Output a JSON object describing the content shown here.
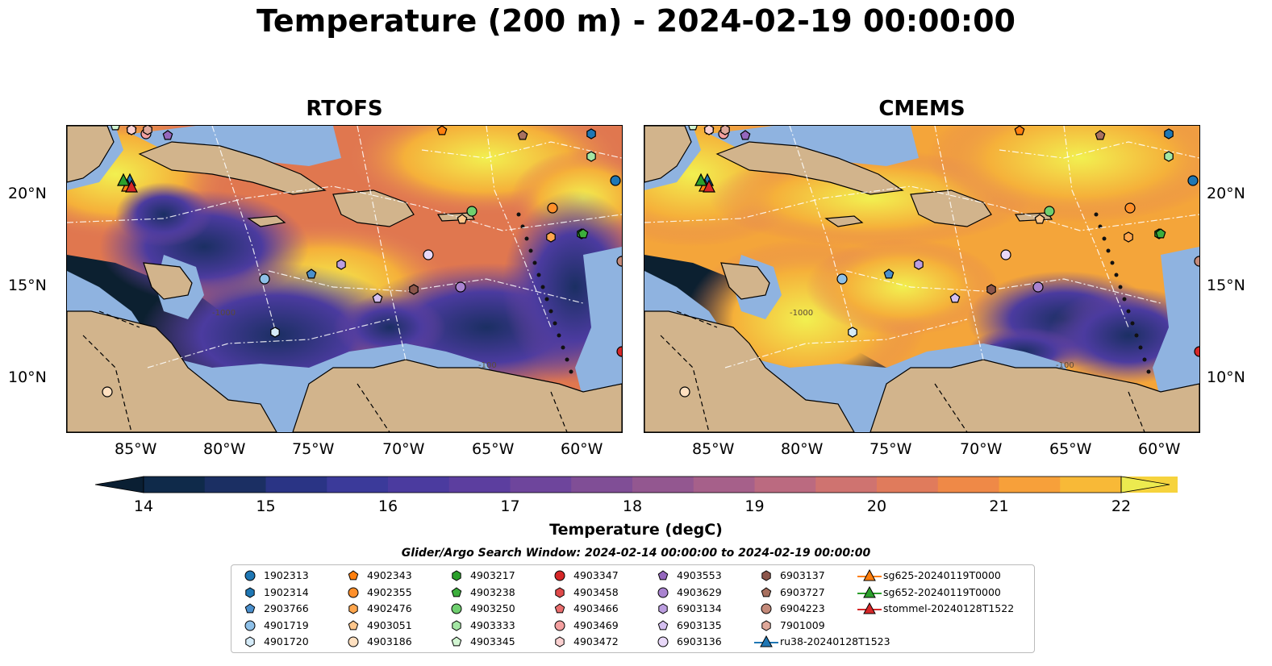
{
  "title": "Temperature (200 m) - 2024-02-19 00:00:00",
  "panels": [
    {
      "id": "left",
      "title": "RTOFS"
    },
    {
      "id": "right",
      "title": "CMEMS"
    }
  ],
  "lat_labels": [
    "20°N",
    "15°N",
    "10°N"
  ],
  "lon_labels": [
    "85°W",
    "80°W",
    "75°W",
    "70°W",
    "65°W",
    "60°W"
  ],
  "colorbar": {
    "label": "Temperature (degC)",
    "ticks": [
      "14",
      "15",
      "16",
      "17",
      "18",
      "19",
      "20",
      "21",
      "22"
    ],
    "min": 14,
    "max": 22,
    "colors": [
      "#0a1f33",
      "#0f2a4a",
      "#1b2f63",
      "#2a3485",
      "#3b3a9a",
      "#4b3b9f",
      "#5c3e9f",
      "#6e459c",
      "#804e96",
      "#935790",
      "#a6608a",
      "#bb6a80",
      "#cf7370",
      "#e07b5c",
      "#ef8947",
      "#f7a03a",
      "#f8b937",
      "#f6d33d",
      "#ecea4f"
    ]
  },
  "search_window": "Glider/Argo Search Window: 2024-02-14 00:00:00 to 2024-02-19 00:00:00",
  "legend": [
    {
      "label": "1902313",
      "shape": "circle",
      "color": "#1f77b4"
    },
    {
      "label": "1902314",
      "shape": "hexagon",
      "color": "#1f77b4"
    },
    {
      "label": "2903766",
      "shape": "pentagon",
      "color": "#4a8fcc"
    },
    {
      "label": "4901719",
      "shape": "circle",
      "color": "#8ec0e8"
    },
    {
      "label": "4901720",
      "shape": "hexagon",
      "color": "#d5ebf8"
    },
    {
      "label": "4902343",
      "shape": "pentagon",
      "color": "#ff7f0e"
    },
    {
      "label": "4902355",
      "shape": "circle",
      "color": "#ff8f2a"
    },
    {
      "label": "4902476",
      "shape": "hexagon",
      "color": "#ffa64d"
    },
    {
      "label": "4903051",
      "shape": "pentagon",
      "color": "#ffc78c"
    },
    {
      "label": "4903186",
      "shape": "circle",
      "color": "#ffe0c0"
    },
    {
      "label": "4903217",
      "shape": "hexagon",
      "color": "#2ca02c"
    },
    {
      "label": "4903238",
      "shape": "pentagon",
      "color": "#3cae3c"
    },
    {
      "label": "4903250",
      "shape": "circle",
      "color": "#6fcf6f"
    },
    {
      "label": "4903333",
      "shape": "hexagon",
      "color": "#a4e6a4"
    },
    {
      "label": "4903345",
      "shape": "pentagon",
      "color": "#d2f5d2"
    },
    {
      "label": "4903347",
      "shape": "circle",
      "color": "#d62728"
    },
    {
      "label": "4903458",
      "shape": "hexagon",
      "color": "#e04a4a"
    },
    {
      "label": "4903466",
      "shape": "pentagon",
      "color": "#ea6e6e"
    },
    {
      "label": "4903469",
      "shape": "circle",
      "color": "#f4a0a0"
    },
    {
      "label": "4903472",
      "shape": "hexagon",
      "color": "#fad0d0"
    },
    {
      "label": "4903553",
      "shape": "pentagon",
      "color": "#9467bd"
    },
    {
      "label": "4903629",
      "shape": "circle",
      "color": "#a983d0"
    },
    {
      "label": "6903134",
      "shape": "hexagon",
      "color": "#bc9ee0"
    },
    {
      "label": "6903135",
      "shape": "pentagon",
      "color": "#d4bff0"
    },
    {
      "label": "6903136",
      "shape": "circle",
      "color": "#e8d8f8"
    },
    {
      "label": "6903137",
      "shape": "hexagon",
      "color": "#8c564b"
    },
    {
      "label": "6903727",
      "shape": "pentagon",
      "color": "#a8705f"
    },
    {
      "label": "6904223",
      "shape": "circle",
      "color": "#c48a7a"
    },
    {
      "label": "7901009",
      "shape": "hexagon",
      "color": "#dfa89a"
    },
    {
      "label": "ru38-20240128T1523",
      "shape": "triangle-line",
      "color": "#1f77b4"
    },
    {
      "label": "sg625-20240119T0000",
      "shape": "triangle-line",
      "color": "#ff7f0e"
    },
    {
      "label": "sg652-20240119T0000",
      "shape": "triangle-line",
      "color": "#2ca02c"
    },
    {
      "label": "stommel-20240128T1522",
      "shape": "triangle-line",
      "color": "#d62728"
    }
  ],
  "bathymetry_labels": [
    "-100",
    "-1000"
  ]
}
